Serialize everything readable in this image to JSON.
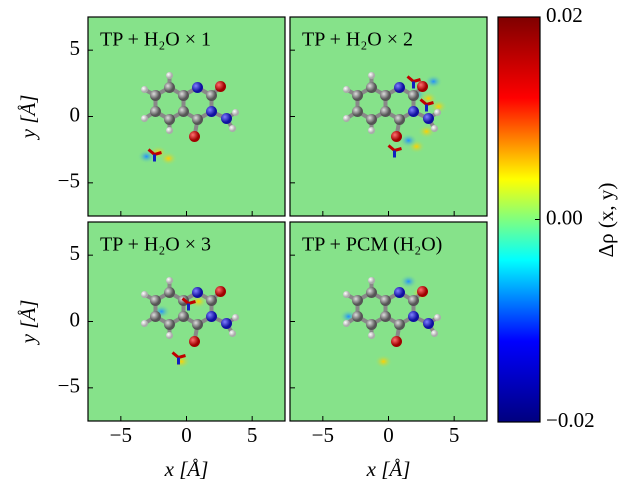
{
  "chart_data": {
    "type": "heatmap",
    "panels": [
      {
        "title": "TP + H₂O × 1"
      },
      {
        "title": "TP + H₂O × 2"
      },
      {
        "title": "TP + H₂O × 3"
      },
      {
        "title": "TP + PCM (H₂O)"
      }
    ],
    "xlabel": "x [Å]",
    "ylabel": "y [Å]",
    "xlim": [
      -7.5,
      7.5
    ],
    "ylim": [
      -7.5,
      7.5
    ],
    "xticks": [
      {
        "value": -5,
        "label": "−5"
      },
      0,
      5
    ],
    "yticks": [
      {
        "value": -5,
        "label": "−5"
      },
      0,
      5
    ],
    "background_color": "#86e28a",
    "colorbar": {
      "label": "Δρ (x, y)",
      "clim": [
        -0.02,
        0.02
      ],
      "ticks": [
        {
          "value": -0.02,
          "label": "−0.02"
        },
        {
          "value": 0,
          "label": "0.00"
        },
        0.02
      ],
      "colormap": [
        "#00007f",
        "#0000ff",
        "#00ffff",
        "#ffff00",
        "#ff0000",
        "#7f0000"
      ]
    }
  }
}
